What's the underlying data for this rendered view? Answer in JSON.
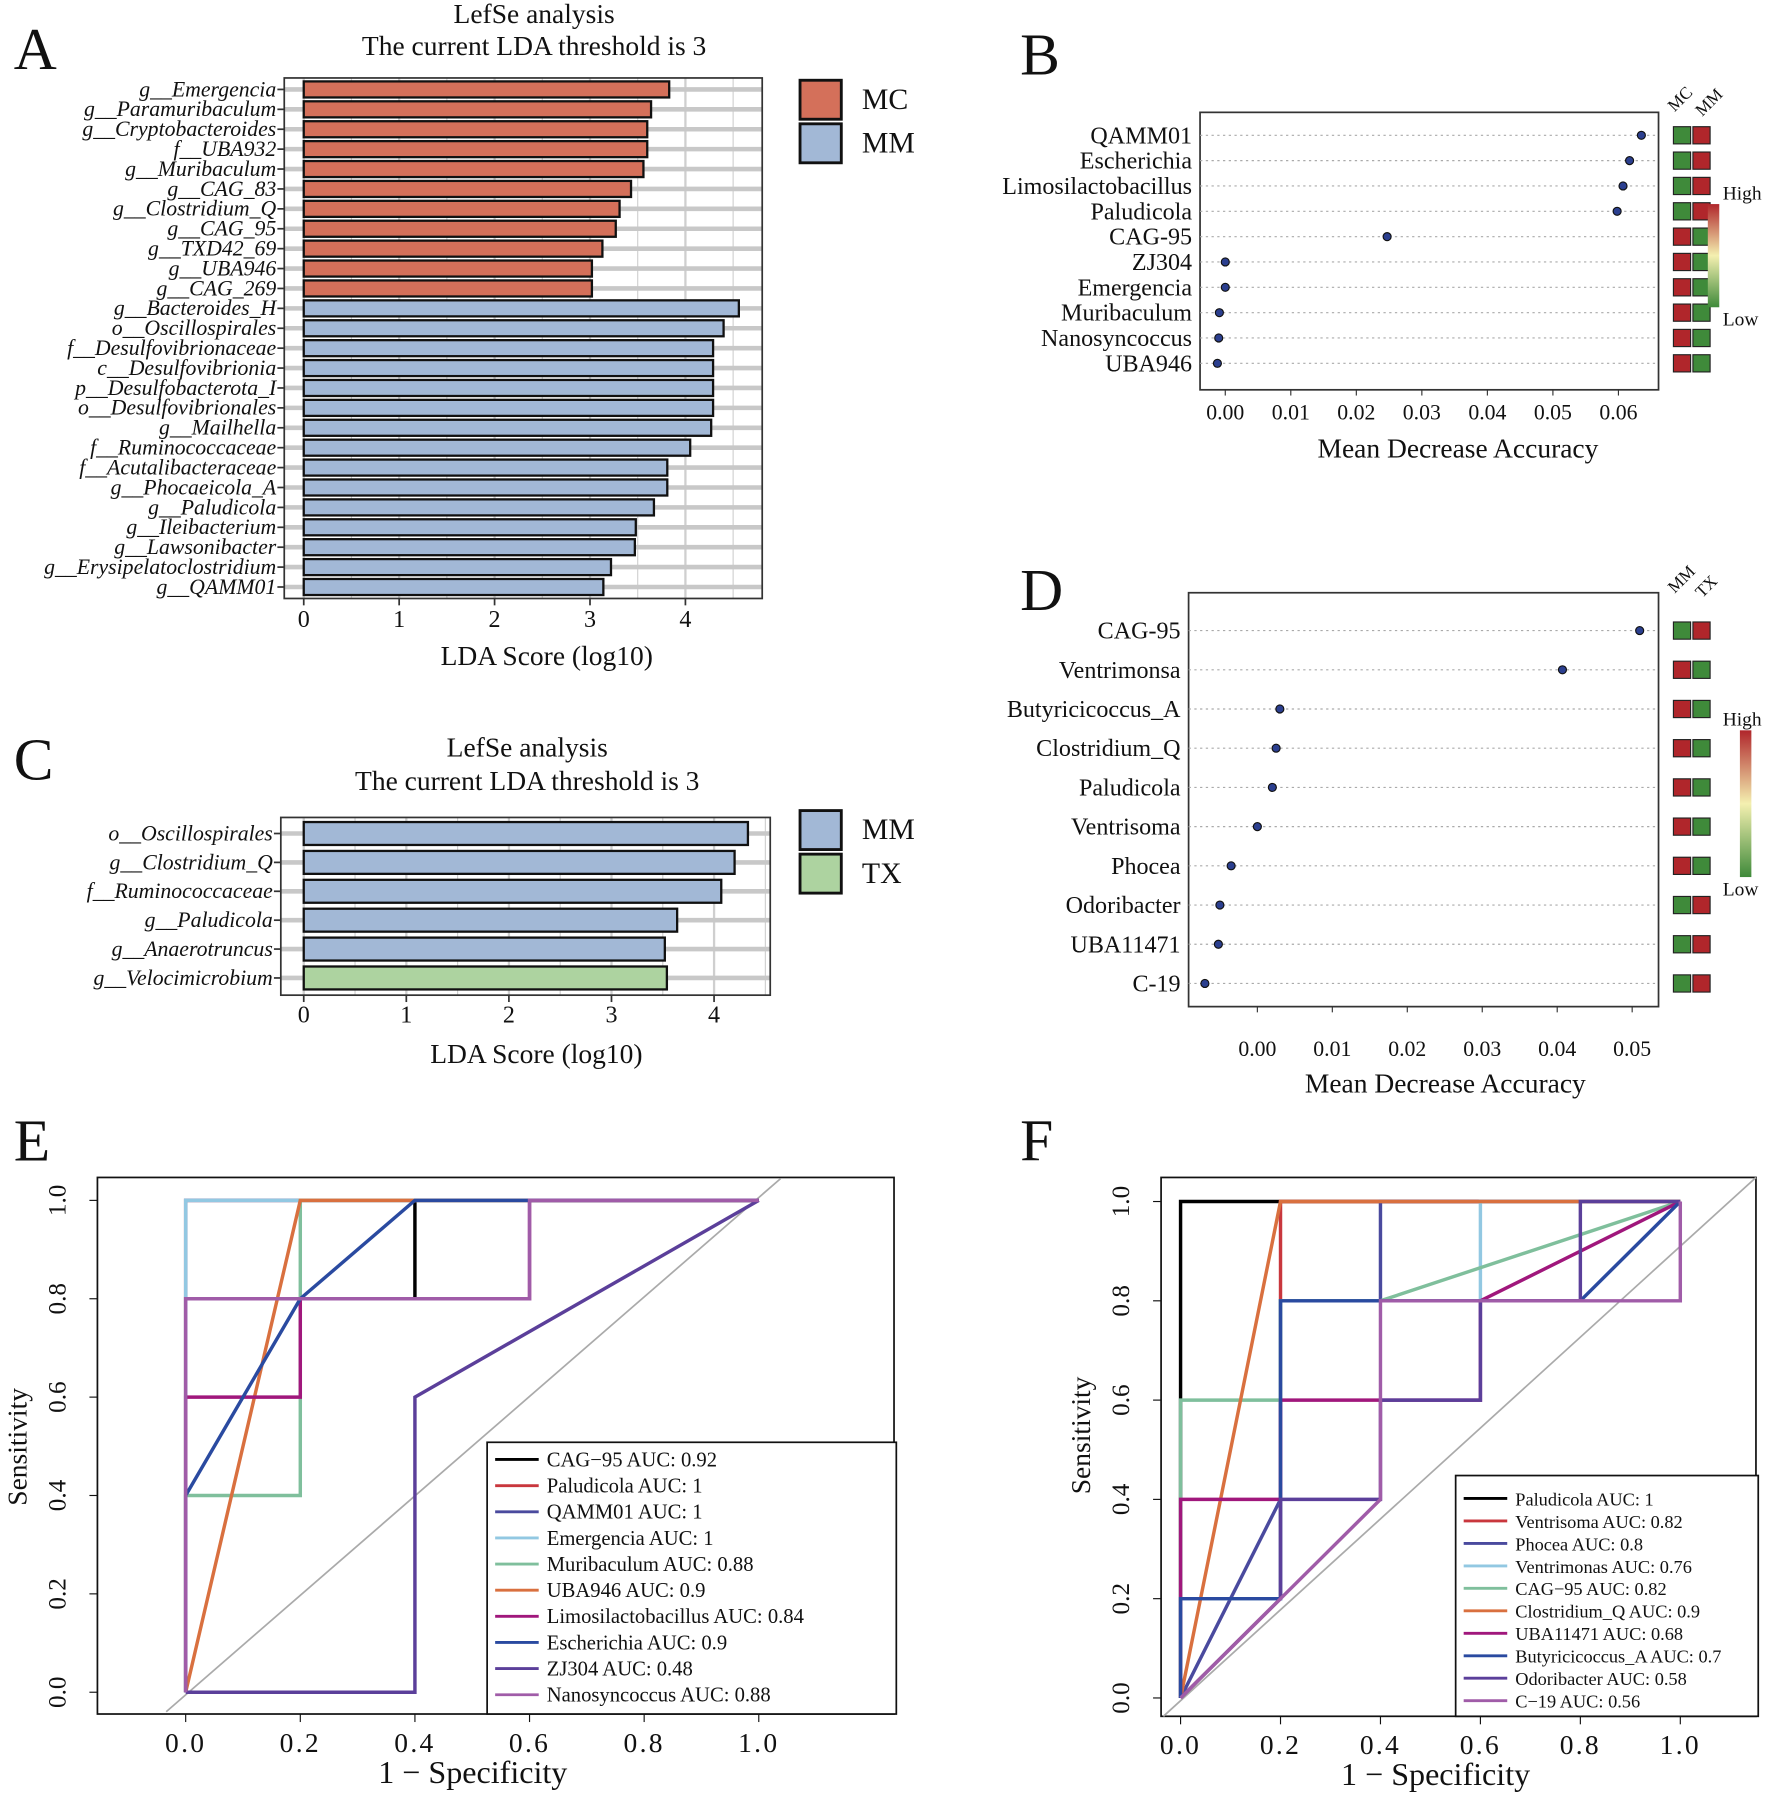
{
  "colors": {
    "MC": "#d4705a",
    "MM": "#a2b8d6",
    "TX": "#add3a0",
    "heat_high": "#b0262b",
    "heat_low": "#3f8a3a",
    "heat_mid": "#f4f0b0"
  },
  "chart_data": [
    {
      "panel": "A",
      "type": "bar",
      "orientation": "horizontal",
      "grid": true,
      "title": [
        "LefSe analysis",
        "The current LDA threshold is 3"
      ],
      "xlabel": "LDA Score (log10)",
      "xticks": [
        "0",
        "1",
        "2",
        "3",
        "4"
      ],
      "xlim": [
        -0.2,
        4.8
      ],
      "legend": [
        {
          "name": "MC",
          "color": "#d4705a"
        },
        {
          "name": "MM",
          "color": "#a2b8d6"
        }
      ],
      "categories": [
        "g__Emergencia",
        "g__Paramuribaculum",
        "g__Cryptobacteroides",
        "f__UBA932",
        "g__Muribaculum",
        "g__CAG_83",
        "g__Clostridium_Q",
        "g__CAG_95",
        "g__TXD42_69",
        "g__UBA946",
        "g__CAG_269",
        "g__Bacteroides_H",
        "o__Oscillospirales",
        "f__Desulfovibrionaceae",
        "c__Desulfovibrionia",
        "p__Desulfobacterota_I",
        "o__Desulfovibrionales",
        "g__Mailhella",
        "f__Ruminococcaceae",
        "f__Acutalibacteraceae",
        "g__Phocaeicola_A",
        "g__Paludicola",
        "g__Ileibacterium",
        "g__Lawsonibacter",
        "g__Erysipelatoclostridium",
        "g__QAMM01"
      ],
      "values": [
        3.83,
        3.64,
        3.6,
        3.6,
        3.56,
        3.43,
        3.31,
        3.27,
        3.13,
        3.02,
        3.02,
        4.56,
        4.4,
        4.29,
        4.29,
        4.29,
        4.29,
        4.27,
        4.05,
        3.81,
        3.81,
        3.67,
        3.48,
        3.47,
        3.22,
        3.14
      ],
      "groups": [
        "MC",
        "MC",
        "MC",
        "MC",
        "MC",
        "MC",
        "MC",
        "MC",
        "MC",
        "MC",
        "MC",
        "MM",
        "MM",
        "MM",
        "MM",
        "MM",
        "MM",
        "MM",
        "MM",
        "MM",
        "MM",
        "MM",
        "MM",
        "MM",
        "MM",
        "MM"
      ]
    },
    {
      "panel": "B",
      "type": "scatter",
      "xlabel": "Mean Decrease Accuracy",
      "xticks": [
        "0.00",
        "0.01",
        "0.02",
        "0.03",
        "0.04",
        "0.05",
        "0.06"
      ],
      "categories": [
        "QAMM01",
        "Escherichia",
        "Limosilactobacillus",
        "Paludicola",
        "CAG-95",
        "ZJ304",
        "Emergencia",
        "Muribaculum",
        "Nanosyncoccus",
        "UBA946"
      ],
      "values": [
        0.0635,
        0.0617,
        0.0607,
        0.0598,
        0.0247,
        0.0,
        0.0,
        -0.0009,
        -0.001,
        -0.0012
      ],
      "heatmap": {
        "columns": [
          "MC",
          "MM"
        ],
        "cells": [
          [
            "low",
            "high"
          ],
          [
            "low",
            "high"
          ],
          [
            "low",
            "high"
          ],
          [
            "low",
            "high"
          ],
          [
            "high",
            "low"
          ],
          [
            "high",
            "low"
          ],
          [
            "high",
            "low"
          ],
          [
            "high",
            "low"
          ],
          [
            "high",
            "low"
          ],
          [
            "high",
            "low"
          ]
        ]
      },
      "colorbar": {
        "high": "High",
        "low": "Low"
      }
    },
    {
      "panel": "C",
      "type": "bar",
      "orientation": "horizontal",
      "grid": true,
      "title": [
        "LefSe analysis",
        "The current LDA threshold is 3"
      ],
      "xlabel": "LDA Score (log10)",
      "xticks": [
        "0",
        "1",
        "2",
        "3",
        "4"
      ],
      "xlim": [
        -0.2,
        4.55
      ],
      "legend": [
        {
          "name": "MM",
          "color": "#a2b8d6"
        },
        {
          "name": "TX",
          "color": "#add3a0"
        }
      ],
      "categories": [
        "o__Oscillospirales",
        "g__Clostridium_Q",
        "f__Ruminococcaceae",
        "g__Paludicola",
        "g__Anaerotruncus",
        "g__Velocimicrobium"
      ],
      "values": [
        4.33,
        4.2,
        4.07,
        3.64,
        3.52,
        3.54
      ],
      "groups": [
        "MM",
        "MM",
        "MM",
        "MM",
        "MM",
        "TX"
      ]
    },
    {
      "panel": "D",
      "type": "scatter",
      "xlabel": "Mean Decrease Accuracy",
      "xticks": [
        "0.00",
        "0.01",
        "0.02",
        "0.03",
        "0.04",
        "0.05"
      ],
      "categories": [
        "CAG-95",
        "Ventrimonsa",
        "Butyricicoccus_A",
        "Clostridium_Q",
        "Paludicola",
        "Ventrisoma",
        "Phocea",
        "Odoribacter",
        "UBA11471",
        "C-19"
      ],
      "values": [
        0.051,
        0.0407,
        0.003,
        0.0025,
        0.002,
        0.0,
        -0.0035,
        -0.005,
        -0.0052,
        -0.007
      ],
      "heatmap": {
        "columns": [
          "MM",
          "TX"
        ],
        "cells": [
          [
            "low",
            "high"
          ],
          [
            "high",
            "low"
          ],
          [
            "high",
            "low"
          ],
          [
            "high",
            "low"
          ],
          [
            "high",
            "low"
          ],
          [
            "high",
            "low"
          ],
          [
            "high",
            "low"
          ],
          [
            "low",
            "high"
          ],
          [
            "low",
            "high"
          ],
          [
            "low",
            "high"
          ]
        ]
      },
      "colorbar": {
        "high": "High",
        "low": "Low"
      }
    },
    {
      "panel": "E",
      "type": "line",
      "xlabel": "1 − Specificity",
      "ylabel": "Sensitivity",
      "xticks": [
        "0.0",
        "0.2",
        "0.4",
        "0.6",
        "0.8",
        "1.0"
      ],
      "yticks": [
        "0.0",
        "0.2",
        "0.4",
        "0.6",
        "0.8",
        "1.0"
      ],
      "series": [
        {
          "name": "CAG−95 AUC: 0.92",
          "color": "#000000",
          "points": [
            [
              0,
              0
            ],
            [
              0,
              0.8
            ],
            [
              0.4,
              0.8
            ],
            [
              0.4,
              1
            ],
            [
              1,
              1
            ]
          ]
        },
        {
          "name": "Paludicola AUC: 1",
          "color": "#c9373d",
          "points": [
            [
              0,
              0
            ],
            [
              0,
              1
            ],
            [
              1,
              1
            ]
          ]
        },
        {
          "name": "QAMM01 AUC: 1",
          "color": "#4a4a9e",
          "points": [
            [
              0,
              0
            ],
            [
              0,
              1
            ],
            [
              1,
              1
            ]
          ]
        },
        {
          "name": "Emergencia AUC: 1",
          "color": "#92c8e2",
          "points": [
            [
              0,
              0
            ],
            [
              0,
              1
            ],
            [
              1,
              1
            ]
          ]
        },
        {
          "name": "Muribaculum AUC: 0.88",
          "color": "#7fbf9c",
          "points": [
            [
              0,
              0
            ],
            [
              0,
              0.4
            ],
            [
              0.2,
              0.4
            ],
            [
              0.2,
              1
            ],
            [
              1,
              1
            ]
          ]
        },
        {
          "name": "UBA946 AUC: 0.9",
          "color": "#d9703f",
          "points": [
            [
              0,
              0
            ],
            [
              0.2,
              1
            ],
            [
              1,
              1
            ]
          ]
        },
        {
          "name": "Limosilactobacillus AUC: 0.84",
          "color": "#a0177c",
          "points": [
            [
              0,
              0
            ],
            [
              0,
              0.6
            ],
            [
              0.2,
              0.6
            ],
            [
              0.2,
              0.8
            ],
            [
              0.6,
              0.8
            ],
            [
              0.6,
              1
            ],
            [
              1,
              1
            ]
          ]
        },
        {
          "name": "Escherichia AUC: 0.9",
          "color": "#2a4aa0",
          "points": [
            [
              0,
              0
            ],
            [
              0,
              0.4
            ],
            [
              0.2,
              0.8
            ],
            [
              0.4,
              1
            ],
            [
              1,
              1
            ]
          ]
        },
        {
          "name": "ZJ304 AUC: 0.48",
          "color": "#5b3f9a",
          "points": [
            [
              0,
              0
            ],
            [
              0.4,
              0
            ],
            [
              0.4,
              0.6
            ],
            [
              1,
              1
            ]
          ]
        },
        {
          "name": "Nanosyncoccus AUC: 0.88",
          "color": "#a05ca8",
          "points": [
            [
              0,
              0
            ],
            [
              0,
              0.8
            ],
            [
              0.6,
              0.8
            ],
            [
              0.6,
              1
            ],
            [
              1,
              1
            ]
          ]
        }
      ]
    },
    {
      "panel": "F",
      "type": "line",
      "xlabel": "1 − Specificity",
      "ylabel": "Sensitivity",
      "xticks": [
        "0.0",
        "0.2",
        "0.4",
        "0.6",
        "0.8",
        "1.0"
      ],
      "yticks": [
        "0.0",
        "0.2",
        "0.4",
        "0.6",
        "0.8",
        "1.0"
      ],
      "series": [
        {
          "name": "Paludicola AUC: 1",
          "color": "#000000",
          "points": [
            [
              0,
              0
            ],
            [
              0,
              1
            ],
            [
              1,
              1
            ]
          ]
        },
        {
          "name": "Ventrisoma AUC: 0.82",
          "color": "#c9373d",
          "points": [
            [
              0,
              0
            ],
            [
              0.2,
              0.2
            ],
            [
              0.2,
              1
            ],
            [
              1,
              1
            ]
          ]
        },
        {
          "name": "Phocea AUC: 0.8",
          "color": "#4a4a9e",
          "points": [
            [
              0,
              0
            ],
            [
              0.2,
              0.4
            ],
            [
              0.2,
              0.8
            ],
            [
              0.4,
              0.8
            ],
            [
              0.4,
              1
            ],
            [
              1,
              1
            ]
          ]
        },
        {
          "name": "Ventrimonas AUC: 0.76",
          "color": "#92c8e2",
          "points": [
            [
              0,
              0
            ],
            [
              0,
              0.2
            ],
            [
              0.2,
              0.2
            ],
            [
              0.2,
              0.8
            ],
            [
              0.6,
              0.8
            ],
            [
              0.6,
              1
            ],
            [
              1,
              1
            ]
          ]
        },
        {
          "name": "CAG−95 AUC: 0.82",
          "color": "#7fbf9c",
          "points": [
            [
              0,
              0
            ],
            [
              0,
              0.6
            ],
            [
              0.2,
              0.6
            ],
            [
              0.2,
              0.8
            ],
            [
              0.4,
              0.8
            ],
            [
              1,
              1
            ]
          ]
        },
        {
          "name": "Clostridium_Q AUC: 0.9",
          "color": "#d9703f",
          "points": [
            [
              0,
              0
            ],
            [
              0.2,
              1
            ],
            [
              1,
              1
            ]
          ]
        },
        {
          "name": "UBA11471 AUC: 0.68",
          "color": "#a0177c",
          "points": [
            [
              0,
              0
            ],
            [
              0,
              0.4
            ],
            [
              0.2,
              0.4
            ],
            [
              0.2,
              0.6
            ],
            [
              0.6,
              0.6
            ],
            [
              0.6,
              0.8
            ],
            [
              1,
              1
            ]
          ]
        },
        {
          "name": "Butyricicoccus_A AUC: 0.7",
          "color": "#2a4aa0",
          "points": [
            [
              0,
              0
            ],
            [
              0,
              0.2
            ],
            [
              0.2,
              0.2
            ],
            [
              0.2,
              0.8
            ],
            [
              0.8,
              0.8
            ],
            [
              1,
              1
            ]
          ]
        },
        {
          "name": "Odoribacter AUC: 0.58",
          "color": "#5b3f9a",
          "points": [
            [
              0,
              0
            ],
            [
              0.2,
              0.2
            ],
            [
              0.2,
              0.4
            ],
            [
              0.4,
              0.4
            ],
            [
              0.4,
              0.6
            ],
            [
              0.6,
              0.6
            ],
            [
              0.6,
              0.8
            ],
            [
              0.8,
              0.8
            ],
            [
              0.8,
              1
            ],
            [
              1,
              1
            ]
          ]
        },
        {
          "name": "C−19 AUC: 0.56",
          "color": "#a05ca8",
          "points": [
            [
              0,
              0
            ],
            [
              0.4,
              0.4
            ],
            [
              0.4,
              0.8
            ],
            [
              1,
              0.8
            ],
            [
              1,
              1
            ]
          ]
        }
      ]
    }
  ]
}
